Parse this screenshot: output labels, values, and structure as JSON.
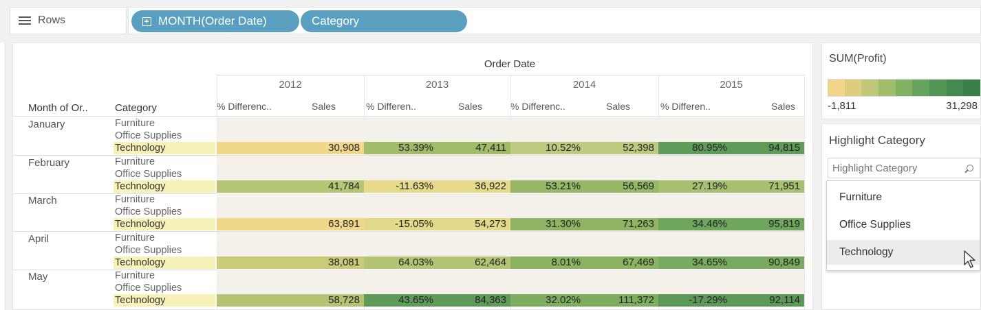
{
  "rows_shelf": {
    "label": "Rows",
    "pills": [
      {
        "label": "MONTH(Order Date)",
        "has_plus": true
      },
      {
        "label": "Category",
        "has_plus": false
      }
    ]
  },
  "table": {
    "header": "Order Date",
    "years": [
      "2012",
      "2013",
      "2014",
      "2015"
    ],
    "row_headers": [
      "Month of Or..",
      "Category"
    ],
    "column_headers": [
      "% Differenc..",
      "Sales",
      "% Differen..",
      "Sales",
      "% Differenc..",
      "Sales",
      "% Differen..",
      "Sales"
    ],
    "categories": [
      "Furniture",
      "Office Supplies",
      "Technology"
    ],
    "months": [
      {
        "name": "January",
        "tech": [
          "",
          "30,908",
          "53.39%",
          "47,411",
          "10.52%",
          "52,398",
          "80.95%",
          "94,815"
        ]
      },
      {
        "name": "February",
        "tech": [
          "",
          "41,784",
          "-11.63%",
          "36,922",
          "53.21%",
          "56,569",
          "27.19%",
          "71,951"
        ]
      },
      {
        "name": "March",
        "tech": [
          "",
          "63,891",
          "-15.05%",
          "54,273",
          "31.30%",
          "71,263",
          "34.46%",
          "95,819"
        ]
      },
      {
        "name": "April",
        "tech": [
          "",
          "38,081",
          "64.03%",
          "62,464",
          "8.01%",
          "67,469",
          "34.65%",
          "90,849"
        ]
      },
      {
        "name": "May",
        "tech": [
          "",
          "58,728",
          "43.65%",
          "84,363",
          "32.02%",
          "111,372",
          "-17.29%",
          "92,114"
        ]
      }
    ],
    "colors": {
      "jan": [
        "#f0d789",
        "#f0d789",
        "#a2bb68",
        "#a2bb68",
        "#bccb80",
        "#bccb80",
        "#5f9b59",
        "#5f9b59"
      ],
      "feb": [
        "#b7c674",
        "#b7c674",
        "#e6d98a",
        "#e6d98a",
        "#95b766",
        "#95b766",
        "#a7c070",
        "#a7c070"
      ],
      "mar": [
        "#f0d789",
        "#f0d789",
        "#e3d98a",
        "#e3d98a",
        "#8fb564",
        "#8fb564",
        "#6fa65d",
        "#6fa65d"
      ],
      "apr": [
        "#c9cb78",
        "#c9cb78",
        "#b3c474",
        "#b3c474",
        "#8bb462",
        "#8bb462",
        "#78aa5f",
        "#78aa5f"
      ],
      "may": [
        "#b4c271",
        "#b4c271",
        "#5e9b58",
        "#5e9b58",
        "#7dae60",
        "#7dae60",
        "#5c9857",
        "#5c9857"
      ]
    }
  },
  "legend": {
    "title": "SUM(Profit)",
    "min": "-1,811",
    "max": "31,298",
    "ramp": [
      "#f2d48a",
      "#dccd80",
      "#bfc878",
      "#9fbd6a",
      "#82b162",
      "#67a35c",
      "#529657",
      "#438a4f",
      "#3b7f48"
    ]
  },
  "highlight": {
    "title": "Highlight Category",
    "placeholder": "Highlight Category",
    "options": [
      "Furniture",
      "Office Supplies",
      "Technology"
    ],
    "hovered": "Technology"
  }
}
